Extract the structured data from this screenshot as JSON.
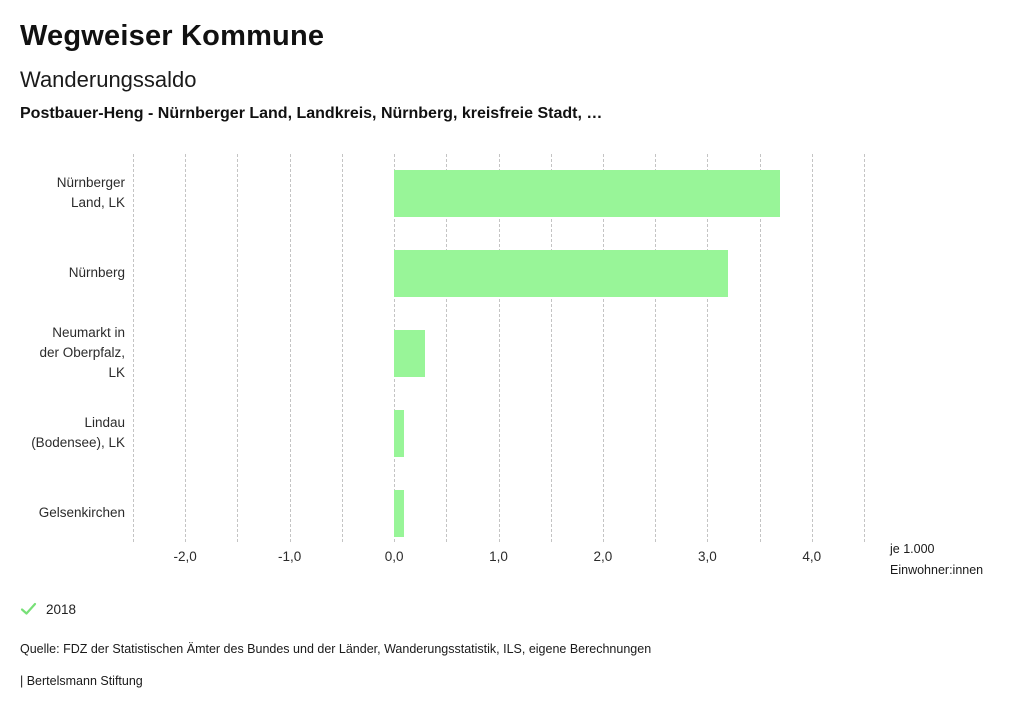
{
  "header": {
    "app_title": "Wegweiser Kommune",
    "chart_title": "Wanderungssaldo",
    "selection": "Postbauer-Heng - Nürnberger Land, Landkreis, Nürnberg, kreisfreie Stadt, …"
  },
  "chart_data": {
    "type": "bar",
    "orientation": "horizontal",
    "title": "Wanderungssaldo",
    "categories": [
      "Nürnberger Land, LK",
      "Nürnberg",
      "Neumarkt in der Oberpfalz, LK",
      "Lindau (Bodensee), LK",
      "Gelsenkirchen"
    ],
    "category_label_lines": [
      [
        "Nürnberger",
        "Land, LK"
      ],
      [
        "Nürnberg"
      ],
      [
        "Neumarkt in",
        "der Oberpfalz,",
        "LK"
      ],
      [
        "Lindau",
        "(Bodensee), LK"
      ],
      [
        "Gelsenkirchen"
      ]
    ],
    "series": [
      {
        "name": "2018",
        "values": [
          3.7,
          3.2,
          0.3,
          0.1,
          0.1
        ]
      }
    ],
    "xlim": [
      -2.5,
      4.5
    ],
    "grid_step": 0.5,
    "grid": true,
    "ticks": [
      {
        "value": -2,
        "label": "-2,0"
      },
      {
        "value": -1,
        "label": "-1,0"
      },
      {
        "value": 0,
        "label": "0,0"
      },
      {
        "value": 1,
        "label": "1,0"
      },
      {
        "value": 2,
        "label": "2,0"
      },
      {
        "value": 3,
        "label": "3,0"
      },
      {
        "value": 4,
        "label": "4,0"
      }
    ],
    "unit_label_lines": [
      "je 1.000",
      "Einwohner:innen"
    ],
    "colors": {
      "bar": "#98f598",
      "gridline": "#c4c4c4",
      "legend_check": "#77e077"
    },
    "legend": {
      "position": "bottom-left",
      "items": [
        {
          "label": "2018",
          "checked": true
        }
      ]
    }
  },
  "footer": {
    "source": "Quelle: FDZ der Statistischen Ämter des Bundes und der Länder, Wanderungsstatistik, ILS, eigene Berechnungen",
    "attribution": "| Bertelsmann Stiftung"
  }
}
